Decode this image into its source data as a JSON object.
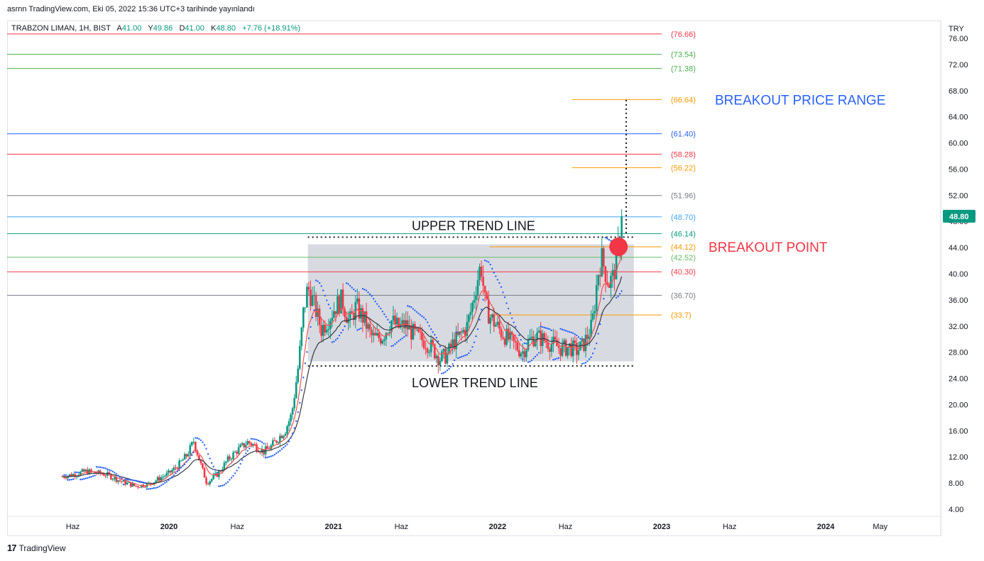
{
  "header": {
    "published_line": "asrnn TradingView.com, Eki 05, 2022 15:36 UTC+3 tarihinde yayınlandı"
  },
  "legend": {
    "symbol": "TRABZON LIMAN, 1H, BIST",
    "o_label": "A",
    "o_value": "41.00",
    "h_label": "Y",
    "h_value": "49.86",
    "d_label": "D",
    "d_value": "41.00",
    "c_label": "K",
    "c_value": "48.80",
    "change": "+7.76 (+18.91%)"
  },
  "footer": {
    "brand": "TradingView",
    "logo_glyph": "17"
  },
  "colors": {
    "up": "#089981",
    "down": "#f23645",
    "ema_fast": "#ef5350",
    "ema_slow": "#363a45",
    "sar": "#2962ff",
    "box": "#d1d4dc",
    "price_tag": "#089981",
    "annotation_blue": "#2962ff",
    "annotation_red": "#f23645",
    "breakout_dot": "#f23645"
  },
  "chart_data": {
    "type": "candlestick",
    "currency": "TRY",
    "last_price": 48.8,
    "last_price_label": "48.80",
    "y_axis": {
      "min": 2.0,
      "max": 78.0,
      "ticks": [
        4,
        8,
        12,
        16,
        20,
        24,
        28,
        32,
        36,
        40,
        44,
        48,
        52,
        56,
        60,
        64,
        68,
        72,
        76
      ],
      "tick_labels": [
        "4.00",
        "8.00",
        "12.00",
        "16.00",
        "20.00",
        "24.00",
        "28.00",
        "32.00",
        "36.00",
        "40.00",
        "44.00",
        "48.00",
        "52.00",
        "56.00",
        "60.00",
        "64.00",
        "68.00",
        "72.00",
        "76.00"
      ]
    },
    "x_axis": {
      "start": "2019-05-09",
      "end": "2024-12-01",
      "ticks": [
        {
          "date": "2019-06-01",
          "label": "Haz",
          "bold": false
        },
        {
          "date": "2020-01-01",
          "label": "2020",
          "bold": true
        },
        {
          "date": "2020-06-01",
          "label": "Haz",
          "bold": false
        },
        {
          "date": "2021-01-01",
          "label": "2021",
          "bold": true
        },
        {
          "date": "2021-06-01",
          "label": "Haz",
          "bold": false
        },
        {
          "date": "2022-01-01",
          "label": "2022",
          "bold": true
        },
        {
          "date": "2022-06-01",
          "label": "Haz",
          "bold": false
        },
        {
          "date": "2023-01-01",
          "label": "2023",
          "bold": true
        },
        {
          "date": "2023-06-01",
          "label": "Haz",
          "bold": false
        },
        {
          "date": "2024-01-01",
          "label": "2024",
          "bold": true
        },
        {
          "date": "2024-05-01",
          "label": "May",
          "bold": false
        }
      ]
    },
    "horizontal_levels": [
      {
        "value": 76.66,
        "label": "(76.66)",
        "color": "#f23645",
        "from": "start"
      },
      {
        "value": 73.54,
        "label": "(73.54)",
        "color": "#4caf50",
        "from": "start"
      },
      {
        "value": 71.38,
        "label": "(71.38)",
        "color": "#4caf50",
        "from": "start"
      },
      {
        "value": 66.64,
        "label": "(66.64)",
        "color": "#ff9800",
        "from": "2022-06-16"
      },
      {
        "value": 61.4,
        "label": "(61.40)",
        "color": "#2962ff",
        "from": "start"
      },
      {
        "value": 58.28,
        "label": "(58.28)",
        "color": "#f23645",
        "from": "start"
      },
      {
        "value": 56.22,
        "label": "(56.22)",
        "color": "#ff9800",
        "from": "2022-06-16"
      },
      {
        "value": 51.96,
        "label": "(51.96)",
        "color": "#787b86",
        "from": "start"
      },
      {
        "value": 48.7,
        "label": "(48.70)",
        "color": "#42a5f5",
        "from": "start"
      },
      {
        "value": 46.14,
        "label": "(46.14)",
        "color": "#089981",
        "from": "start"
      },
      {
        "value": 44.12,
        "label": "(44.12)",
        "color": "#ff9800",
        "from": "2021-12-14"
      },
      {
        "value": 42.52,
        "label": "(42.52)",
        "color": "#66bb6a",
        "from": "start"
      },
      {
        "value": 40.3,
        "label": "(40.30)",
        "color": "#f23645",
        "from": "start"
      },
      {
        "value": 36.7,
        "label": "(36.70)",
        "color": "#787b86",
        "from": "start"
      },
      {
        "value": 33.7,
        "label": "(33.7)",
        "color": "#ff9800",
        "from": "2021-12-14"
      }
    ],
    "annotations": {
      "breakout_range_text": "BREAKOUT PRICE RANGE",
      "breakout_point_text": "BREAKOUT POINT",
      "upper_trend_text": "UPPER TREND LINE",
      "lower_trend_text": "LOWER TREND LINE",
      "upper_trend_value": 45.6,
      "lower_trend_value": 25.9,
      "trend_from": "2020-11-05",
      "trend_to": "2022-11-01",
      "box_from": "2020-11-05",
      "box_to": "2022-10-31",
      "box_top": 44.5,
      "box_bottom": 26.6,
      "breakout_date": "2022-09-27",
      "breakout_value": 44.12,
      "range_line_date": "2022-10-14",
      "range_line_from": 46.2,
      "range_line_to": 66.6
    },
    "price_anchors": [
      [
        "2019-05-09",
        9.0
      ],
      [
        "2019-06-01",
        9.3
      ],
      [
        "2019-07-01",
        9.8
      ],
      [
        "2019-08-15",
        9.3
      ],
      [
        "2019-09-15",
        8.3
      ],
      [
        "2019-10-20",
        7.5
      ],
      [
        "2019-11-20",
        7.9
      ],
      [
        "2019-12-10",
        8.7
      ],
      [
        "2020-01-01",
        9.5
      ],
      [
        "2020-01-20",
        10.6
      ],
      [
        "2020-02-10",
        12.3
      ],
      [
        "2020-02-25",
        14.4
      ],
      [
        "2020-03-10",
        11.2
      ],
      [
        "2020-03-25",
        8.0
      ],
      [
        "2020-04-20",
        9.5
      ],
      [
        "2020-05-10",
        11.5
      ],
      [
        "2020-06-01",
        13.0
      ],
      [
        "2020-06-25",
        14.3
      ],
      [
        "2020-07-15",
        13.5
      ],
      [
        "2020-07-30",
        12.8
      ],
      [
        "2020-08-15",
        13.6
      ],
      [
        "2020-08-30",
        14.8
      ],
      [
        "2020-09-15",
        16.0
      ],
      [
        "2020-09-30",
        18.5
      ],
      [
        "2020-10-15",
        26.0
      ],
      [
        "2020-10-26",
        34.0
      ],
      [
        "2020-11-05",
        38.0
      ],
      [
        "2020-11-20",
        35.0
      ],
      [
        "2020-12-05",
        31.5
      ],
      [
        "2020-12-20",
        33.0
      ],
      [
        "2021-01-05",
        35.0
      ],
      [
        "2021-01-20",
        36.0
      ],
      [
        "2021-02-05",
        32.5
      ],
      [
        "2021-02-20",
        35.0
      ],
      [
        "2021-03-10",
        33.0
      ],
      [
        "2021-03-25",
        30.5
      ],
      [
        "2021-04-05",
        30.0
      ],
      [
        "2021-04-20",
        30.5
      ],
      [
        "2021-05-10",
        32.8
      ],
      [
        "2021-05-25",
        31.8
      ],
      [
        "2021-06-10",
        32.2
      ],
      [
        "2021-06-25",
        31.0
      ],
      [
        "2021-07-10",
        30.2
      ],
      [
        "2021-07-25",
        29.6
      ],
      [
        "2021-08-10",
        28.5
      ],
      [
        "2021-08-25",
        27.0
      ],
      [
        "2021-09-10",
        27.5
      ],
      [
        "2021-09-25",
        29.5
      ],
      [
        "2021-10-10",
        30.5
      ],
      [
        "2021-10-25",
        32.0
      ],
      [
        "2021-11-05",
        35.0
      ],
      [
        "2021-11-15",
        38.5
      ],
      [
        "2021-11-25",
        41.5
      ],
      [
        "2021-12-05",
        35.0
      ],
      [
        "2021-12-15",
        33.5
      ],
      [
        "2021-12-25",
        32.5
      ],
      [
        "2022-01-10",
        31.0
      ],
      [
        "2022-01-25",
        30.0
      ],
      [
        "2022-02-10",
        29.0
      ],
      [
        "2022-02-25",
        28.0
      ],
      [
        "2022-03-10",
        29.5
      ],
      [
        "2022-03-25",
        30.5
      ],
      [
        "2022-04-10",
        30.0
      ],
      [
        "2022-04-25",
        29.5
      ],
      [
        "2022-05-10",
        29.0
      ],
      [
        "2022-05-25",
        28.5
      ],
      [
        "2022-06-10",
        28.8
      ],
      [
        "2022-06-25",
        28.2
      ],
      [
        "2022-07-10",
        29.0
      ],
      [
        "2022-07-20",
        30.5
      ],
      [
        "2022-07-30",
        32.0
      ],
      [
        "2022-08-05",
        35.5
      ],
      [
        "2022-08-12",
        40.0
      ],
      [
        "2022-08-20",
        42.5
      ],
      [
        "2022-08-28",
        40.5
      ],
      [
        "2022-09-05",
        38.5
      ],
      [
        "2022-09-15",
        39.5
      ],
      [
        "2022-09-25",
        43.5
      ],
      [
        "2022-10-04",
        46.5
      ],
      [
        "2022-10-07",
        48.8
      ]
    ],
    "series": [
      {
        "name": "Price",
        "kind": "candles"
      },
      {
        "kind": "moving-average",
        "color": "#ef5350"
      },
      {
        "kind": "moving-average",
        "color": "#363a45"
      },
      {
        "kind": "parabolic-sar",
        "color": "#2962ff"
      }
    ]
  }
}
